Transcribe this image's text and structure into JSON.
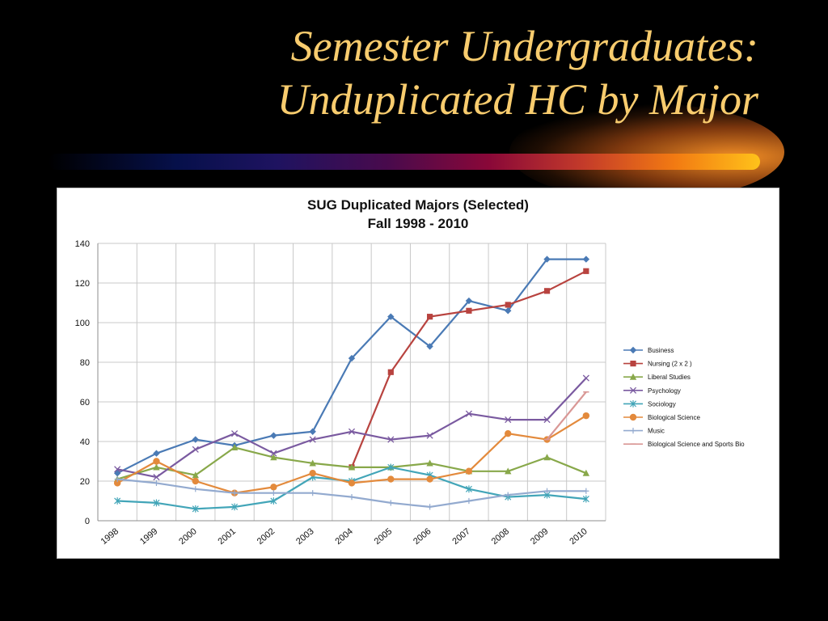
{
  "slide": {
    "title_line1": "Semester Undergraduates:",
    "title_line2": "Unduplicated HC by Major"
  },
  "chart_data": {
    "type": "line",
    "title_line1": "SUG Duplicated Majors (Selected)",
    "title_line2": "Fall 1998 - 2010",
    "xlabel": "",
    "ylabel": "",
    "x": [
      "1998",
      "1999",
      "2000",
      "2001",
      "2002",
      "2003",
      "2004",
      "2005",
      "2006",
      "2007",
      "2008",
      "2009",
      "2010"
    ],
    "ylim": [
      0,
      140
    ],
    "yticks": [
      0,
      20,
      40,
      60,
      80,
      100,
      120,
      140
    ],
    "grid": true,
    "legend_position": "right",
    "series": [
      {
        "name": "Business",
        "color": "#4a7ab5",
        "marker": "diamond",
        "values": [
          24,
          34,
          41,
          38,
          43,
          45,
          82,
          103,
          88,
          111,
          106,
          132,
          132
        ]
      },
      {
        "name": "Nursing (2 x 2 )",
        "color": "#b8433f",
        "marker": "square",
        "values": [
          null,
          null,
          null,
          null,
          null,
          null,
          27,
          75,
          103,
          106,
          109,
          116,
          126
        ]
      },
      {
        "name": "Liberal Studies",
        "color": "#88a84a",
        "marker": "triangle",
        "values": [
          21,
          27,
          23,
          37,
          32,
          29,
          27,
          27,
          29,
          25,
          25,
          32,
          24
        ]
      },
      {
        "name": "Psychology",
        "color": "#7a5aa0",
        "marker": "x",
        "values": [
          26,
          22,
          36,
          44,
          34,
          41,
          45,
          41,
          43,
          54,
          51,
          51,
          72
        ]
      },
      {
        "name": "Sociology",
        "color": "#42a5b8",
        "marker": "star",
        "values": [
          10,
          9,
          6,
          7,
          10,
          22,
          20,
          27,
          23,
          16,
          12,
          13,
          11
        ]
      },
      {
        "name": "Biological Science",
        "color": "#e38a3c",
        "marker": "circle",
        "values": [
          19,
          30,
          20,
          14,
          17,
          24,
          19,
          21,
          21,
          25,
          44,
          41,
          53
        ]
      },
      {
        "name": "Music",
        "color": "#93aacf",
        "marker": "plus",
        "values": [
          21,
          19,
          16,
          14,
          14,
          14,
          12,
          9,
          7,
          10,
          13,
          15,
          15
        ]
      },
      {
        "name": "Biological Science and Sports Bio",
        "color": "#d99795",
        "marker": "dash",
        "values": [
          null,
          null,
          null,
          null,
          null,
          null,
          null,
          null,
          null,
          null,
          null,
          41,
          65
        ]
      }
    ]
  }
}
